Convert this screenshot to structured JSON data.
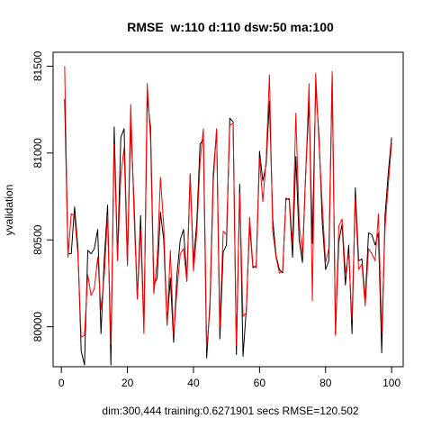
{
  "chart_data": {
    "type": "line",
    "title": "RMSE  w:110 d:110 dsw:50 ma:100",
    "xlabel": "dim:300,444 training:0.6271901 secs RMSE=120.502",
    "ylabel": "yvalidation",
    "xlim": [
      -2.5,
      103.5
    ],
    "ylim": [
      79770,
      81580
    ],
    "x_ticks": [
      0,
      20,
      40,
      60,
      80,
      100
    ],
    "y_ticks": [
      80000,
      80500,
      81000,
      81500
    ],
    "grid": false,
    "x": [
      1,
      2,
      3,
      4,
      5,
      6,
      7,
      8,
      9,
      10,
      11,
      12,
      13,
      14,
      15,
      16,
      17,
      18,
      19,
      20,
      21,
      22,
      23,
      24,
      25,
      26,
      27,
      28,
      29,
      30,
      31,
      32,
      33,
      34,
      35,
      36,
      37,
      38,
      39,
      40,
      41,
      42,
      43,
      44,
      45,
      46,
      47,
      48,
      49,
      50,
      51,
      52,
      53,
      54,
      55,
      56,
      57,
      58,
      59,
      60,
      61,
      62,
      63,
      64,
      65,
      66,
      67,
      68,
      69,
      70,
      71,
      72,
      73,
      74,
      75,
      76,
      77,
      78,
      79,
      80,
      81,
      82,
      83,
      84,
      85,
      86,
      87,
      88,
      89,
      90,
      91,
      92,
      93,
      94,
      95,
      96,
      97,
      98,
      99,
      100
    ],
    "series": [
      {
        "color": "#000000",
        "values": [
          81310,
          80420,
          80420,
          80690,
          80460,
          79860,
          79780,
          80440,
          80420,
          80450,
          80560,
          79960,
          80390,
          80700,
          79780,
          81150,
          80390,
          81090,
          81140,
          80360,
          81170,
          80720,
          80160,
          80640,
          79980,
          81320,
          81150,
          80240,
          80280,
          80660,
          80500,
          80010,
          80280,
          79910,
          80300,
          80500,
          80560,
          80270,
          80880,
          80370,
          80600,
          81050,
          81080,
          79820,
          80140,
          80880,
          81130,
          79930,
          80430,
          80470,
          81200,
          81180,
          79840,
          80820,
          79830,
          80100,
          80590,
          80340,
          80350,
          81010,
          80840,
          80930,
          81300,
          80620,
          80410,
          80330,
          80310,
          80740,
          80730,
          80400,
          80980,
          80500,
          80370,
          80900,
          81290,
          80480,
          81390,
          81100,
          80600,
          80330,
          80380,
          81450,
          79960,
          80490,
          80590,
          80240,
          80470,
          79960,
          80800,
          80380,
          80390,
          80150,
          80540,
          80530,
          80470,
          80540,
          79850,
          80640,
          80890,
          81090
        ]
      },
      {
        "color": "#ff0000",
        "values": [
          81500,
          80400,
          80650,
          80640,
          80420,
          79940,
          79950,
          80300,
          80180,
          80220,
          80400,
          80100,
          80300,
          80640,
          79900,
          81050,
          80380,
          80870,
          81030,
          80350,
          81280,
          80650,
          80160,
          80560,
          79960,
          81400,
          81080,
          80190,
          80380,
          80860,
          80580,
          80010,
          80440,
          79950,
          80210,
          80420,
          80450,
          80260,
          80880,
          80320,
          80540,
          80950,
          81140,
          79880,
          80100,
          80830,
          81140,
          80000,
          80550,
          80530,
          81160,
          81170,
          79890,
          80770,
          80060,
          80080,
          80630,
          80350,
          80340,
          80970,
          80720,
          80960,
          81450,
          80550,
          80400,
          80310,
          80320,
          80730,
          80740,
          80480,
          81230,
          80600,
          80410,
          80890,
          81400,
          80150,
          81460,
          81060,
          80700,
          80370,
          80450,
          81470,
          79950,
          80580,
          80620,
          80310,
          80420,
          80040,
          80740,
          80330,
          80360,
          80120,
          80450,
          80420,
          80380,
          80650,
          79970,
          80570,
          80820,
          81060
        ]
      }
    ]
  }
}
